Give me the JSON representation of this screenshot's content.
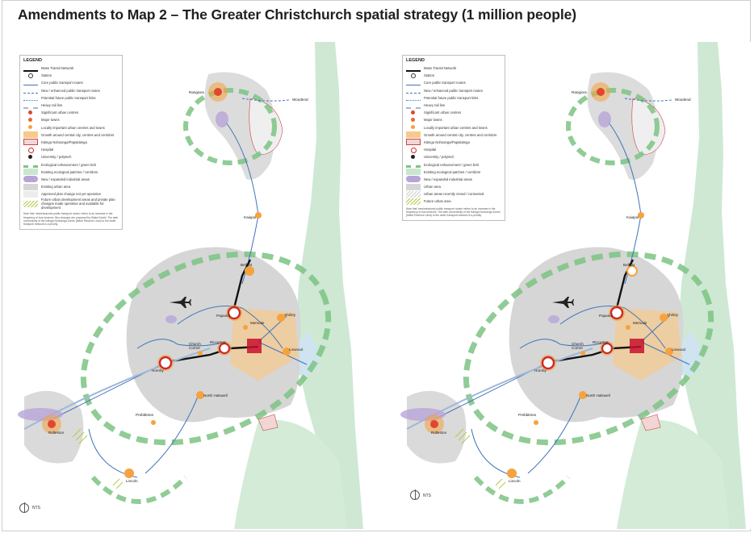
{
  "title": "Amendments to Map 2 – The Greater Christchurch spatial strategy (1 million people)",
  "legend": {
    "title": "LEGEND",
    "items": [
      {
        "label": "Mass Transit Network",
        "key": "mass-transit"
      },
      {
        "label": "Station",
        "key": "station"
      },
      {
        "label": "Core public transport routes",
        "key": "core-pt"
      },
      {
        "label": "New / enhanced public transport routes",
        "key": "new-pt"
      },
      {
        "label": "Potential future public transport links",
        "key": "future-pt"
      },
      {
        "label": "Heavy rail line",
        "key": "rail"
      },
      {
        "label": "Significant urban centres",
        "key": "sig-centre"
      },
      {
        "label": "Major towns",
        "key": "major-town"
      },
      {
        "label": "Locally important urban centres and towns",
        "key": "local-centre"
      },
      {
        "label": "Growth around central city, centres and corridors",
        "key": "growth"
      },
      {
        "label": "Kāinga Nohoanga/Papakāinga",
        "key": "kainga"
      },
      {
        "label": "Hospital",
        "key": "hospital"
      },
      {
        "label": "University / polytech",
        "key": "university"
      },
      {
        "label": "Ecological enhancement / green belt",
        "key": "eco"
      },
      {
        "label": "Existing ecological patches / corridors",
        "key": "eco-existing"
      },
      {
        "label": "New / expanded industrial areas",
        "key": "industrial"
      },
      {
        "label": "Existing urban area",
        "key": "urban"
      },
      {
        "label": "Approved plan change not yet operative",
        "key": "plan-change"
      },
      {
        "label": "Future urban development areas and private plan changes made operative and available for development",
        "key": "future-urban"
      }
    ],
    "note": "Note that 'new/enhanced public transport routes' refers to an increase in the frequency of bus services. Bus changes are proposed by Waka Kotahi. The safe connectivity of the Kāinga Nohoanga Zones (Māori Reserve Land) to the wider transport network is a priority."
  },
  "legend_right": {
    "title": "LEGEND",
    "items": [
      {
        "label": "Mass Transit Network",
        "key": "mass-transit"
      },
      {
        "label": "Station",
        "key": "station"
      },
      {
        "label": "Core public transport routes",
        "key": "core-pt"
      },
      {
        "label": "New / enhanced public transport routes",
        "key": "new-pt"
      },
      {
        "label": "Potential future public transport links",
        "key": "future-pt"
      },
      {
        "label": "Heavy rail line",
        "key": "rail"
      },
      {
        "label": "Significant urban centres",
        "key": "sig-centre"
      },
      {
        "label": "Major towns",
        "key": "major-town"
      },
      {
        "label": "Locally important urban centres and towns",
        "key": "local-centre"
      },
      {
        "label": "Growth around central city, centres and corridors",
        "key": "growth"
      },
      {
        "label": "Kāinga Nohoanga/Papakāinga",
        "key": "kainga"
      },
      {
        "label": "Hospital",
        "key": "hospital"
      },
      {
        "label": "University / polytech",
        "key": "university"
      },
      {
        "label": "Ecological enhancement / green belt",
        "key": "eco"
      },
      {
        "label": "Existing ecological patches / corridors",
        "key": "eco-existing"
      },
      {
        "label": "New / expanded industrial areas",
        "key": "industrial"
      },
      {
        "label": "Urban area",
        "key": "urban"
      },
      {
        "label": "Urban areas recently zoned / consented",
        "key": "plan-change"
      },
      {
        "label": "Future urban area",
        "key": "future-urban"
      }
    ],
    "note": "Note that 'new/enhanced public transport routes' refers to an increase in the frequency of bus services. The safe connectivity of the Kāinga Nohoanga Zones (Māori Reserve Land) to the wider transport network is a priority."
  },
  "places": {
    "rangiora": "Rangiora",
    "woodend": "Woodend",
    "kaiapoi": "Kaiapoi",
    "belfast": "Belfast",
    "papanui": "Papanui",
    "merivale": "Merivale",
    "shirley": "Shirley",
    "church_corner": "Church Corner",
    "riccarton": "Riccarton",
    "hornby": "Hornby",
    "linwood": "Linwood",
    "north_halswell": "North Halswell",
    "prebbleton": "Prebbleton",
    "rolleston": "Rolleston",
    "lincoln": "Lincoln"
  },
  "scale_label": "NTS",
  "colors": {
    "urban": "#d9d9d9",
    "green": "#a8d5b0",
    "ring": "#6cbf73",
    "transit": "#111111",
    "orange": "#f4a341",
    "red": "#d7263d",
    "pt_blue": "#3f74b9"
  }
}
